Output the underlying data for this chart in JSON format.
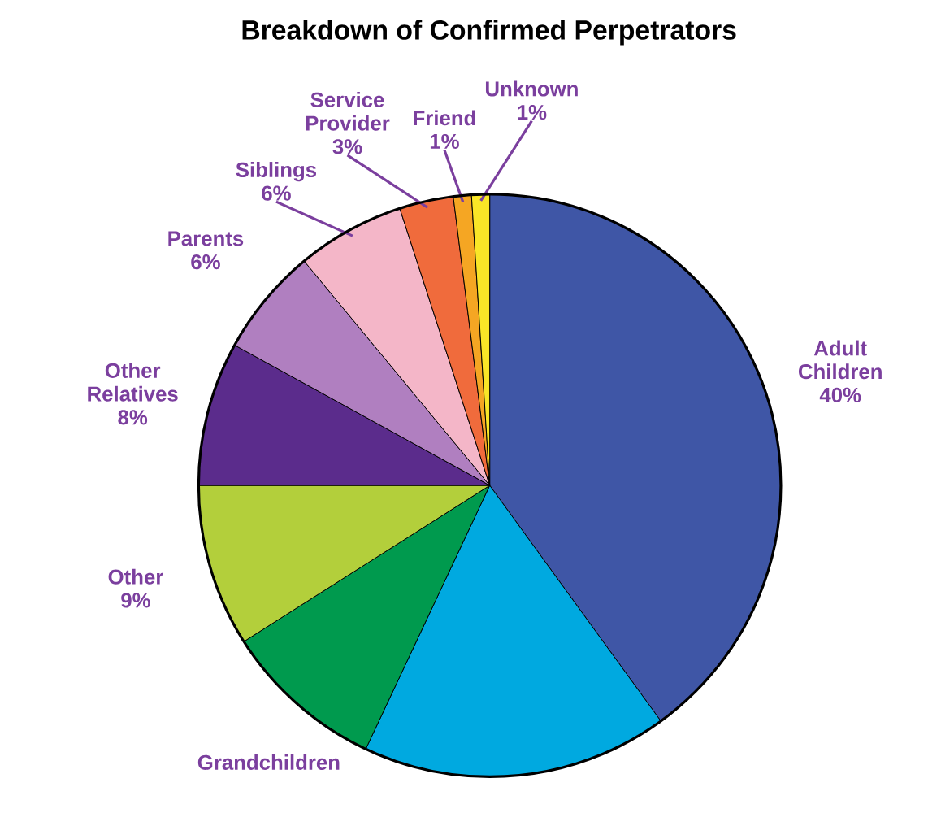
{
  "chart_data": {
    "type": "pie",
    "title": "Breakdown of Confirmed Perpetrators",
    "categories": [
      "Adult Children",
      null,
      "Grandchildren",
      "Other",
      "Other Relatives",
      "Parents",
      "Siblings",
      "Service Provider",
      "Friend",
      "Unknown"
    ],
    "values": [
      40,
      17,
      9,
      9,
      8,
      6,
      6,
      3,
      1,
      1
    ],
    "value_labels": [
      "40%",
      null,
      null,
      "9%",
      "8%",
      "6%",
      "6%",
      "3%",
      "1%",
      "1%"
    ],
    "colors": [
      "#3f56a6",
      "#00a9e0",
      "#009a4e",
      "#b3cf3b",
      "#5b2c8c",
      "#b07fc0",
      "#f4b6c8",
      "#f06b3c",
      "#f5a623",
      "#f9e627"
    ]
  }
}
